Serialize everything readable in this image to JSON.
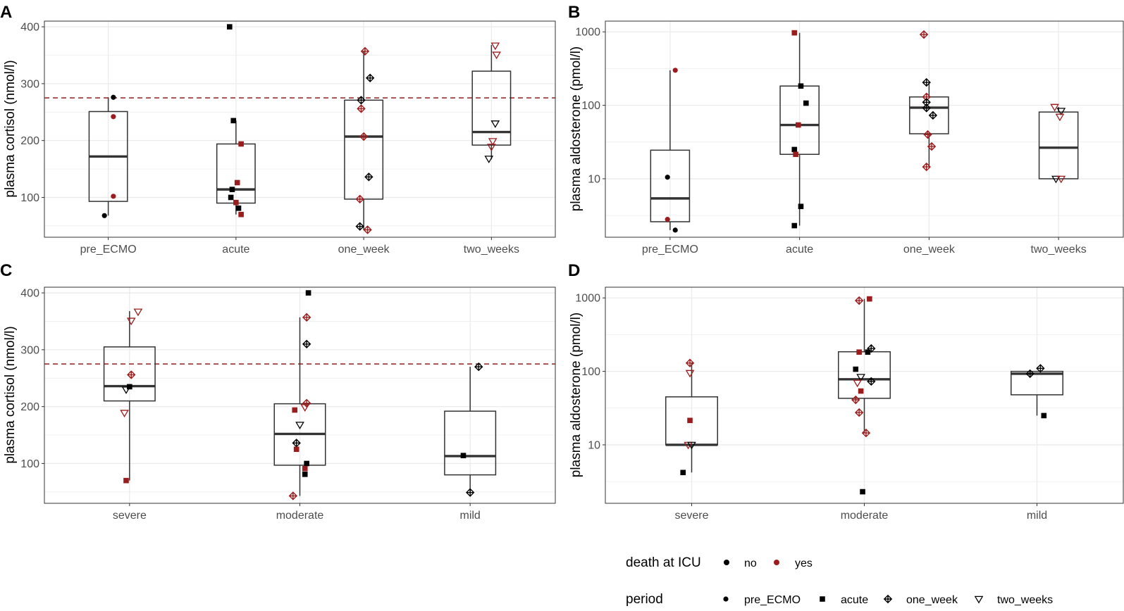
{
  "colors": {
    "no": "#000000",
    "yes": "#9b1c1c",
    "grid": "#ebebeb",
    "frame": "#333333",
    "refline": "#a52a2a"
  },
  "legend": {
    "death_title": "death at ICU",
    "death_items": [
      {
        "key": "no",
        "label": "no"
      },
      {
        "key": "yes",
        "label": "yes"
      }
    ],
    "period_title": "period",
    "period_items": [
      {
        "key": "pre_ECMO",
        "label": "pre_ECMO"
      },
      {
        "key": "acute",
        "label": "acute"
      },
      {
        "key": "one_week",
        "label": "one_week"
      },
      {
        "key": "two_weeks",
        "label": "two_weeks"
      }
    ]
  },
  "chart_data": [
    {
      "panel": "A",
      "type": "box",
      "scale": "linear",
      "ylabel": "plasma cortisol (nmol/l)",
      "ylim": [
        30,
        410
      ],
      "yticks": [
        100,
        200,
        300,
        400
      ],
      "reference_line": 275,
      "categories": [
        "pre_ECMO",
        "acute",
        "one_week",
        "two_weeks"
      ],
      "boxes": [
        {
          "q1": 93,
          "median": 172,
          "q3": 251,
          "whisker_low": 68,
          "whisker_high": 276
        },
        {
          "q1": 90,
          "median": 114,
          "q3": 194,
          "whisker_low": 70,
          "whisker_high": 235
        },
        {
          "q1": 97,
          "median": 207,
          "q3": 271,
          "whisker_low": 43,
          "whisker_high": 357
        },
        {
          "q1": 192,
          "median": 215,
          "q3": 322,
          "whisker_low": 167,
          "whisker_high": 368
        }
      ],
      "points": [
        {
          "cat": 0,
          "dx": -0.03,
          "y": 68,
          "death": "no",
          "period": "pre_ECMO"
        },
        {
          "cat": 0,
          "dx": 0.04,
          "y": 102,
          "death": "yes",
          "period": "pre_ECMO"
        },
        {
          "cat": 0,
          "dx": 0.04,
          "y": 242,
          "death": "yes",
          "period": "pre_ECMO"
        },
        {
          "cat": 0,
          "dx": 0.04,
          "y": 276,
          "death": "no",
          "period": "pre_ECMO"
        },
        {
          "cat": 1,
          "dx": -0.05,
          "y": 400,
          "death": "no",
          "period": "acute"
        },
        {
          "cat": 1,
          "dx": -0.02,
          "y": 235,
          "death": "no",
          "period": "acute"
        },
        {
          "cat": 1,
          "dx": 0.04,
          "y": 194,
          "death": "yes",
          "period": "acute"
        },
        {
          "cat": 1,
          "dx": 0.01,
          "y": 126,
          "death": "yes",
          "period": "acute"
        },
        {
          "cat": 1,
          "dx": -0.03,
          "y": 114,
          "death": "no",
          "period": "acute"
        },
        {
          "cat": 1,
          "dx": -0.04,
          "y": 100,
          "death": "no",
          "period": "acute"
        },
        {
          "cat": 1,
          "dx": 0.0,
          "y": 91,
          "death": "yes",
          "period": "acute"
        },
        {
          "cat": 1,
          "dx": 0.02,
          "y": 81,
          "death": "no",
          "period": "acute"
        },
        {
          "cat": 1,
          "dx": 0.04,
          "y": 70,
          "death": "yes",
          "period": "acute"
        },
        {
          "cat": 2,
          "dx": 0.01,
          "y": 357,
          "death": "yes",
          "period": "one_week"
        },
        {
          "cat": 2,
          "dx": 0.05,
          "y": 310,
          "death": "no",
          "period": "one_week"
        },
        {
          "cat": 2,
          "dx": -0.02,
          "y": 271,
          "death": "no",
          "period": "one_week"
        },
        {
          "cat": 2,
          "dx": -0.02,
          "y": 256,
          "death": "yes",
          "period": "one_week"
        },
        {
          "cat": 2,
          "dx": 0.0,
          "y": 207,
          "death": "yes",
          "period": "one_week"
        },
        {
          "cat": 2,
          "dx": 0.04,
          "y": 136,
          "death": "no",
          "period": "one_week"
        },
        {
          "cat": 2,
          "dx": -0.03,
          "y": 97,
          "death": "yes",
          "period": "one_week"
        },
        {
          "cat": 2,
          "dx": -0.03,
          "y": 49,
          "death": "no",
          "period": "one_week"
        },
        {
          "cat": 2,
          "dx": 0.03,
          "y": 43,
          "death": "yes",
          "period": "one_week"
        },
        {
          "cat": 3,
          "dx": 0.03,
          "y": 367,
          "death": "yes",
          "period": "two_weeks"
        },
        {
          "cat": 3,
          "dx": 0.04,
          "y": 351,
          "death": "yes",
          "period": "two_weeks"
        },
        {
          "cat": 3,
          "dx": 0.03,
          "y": 230,
          "death": "no",
          "period": "two_weeks"
        },
        {
          "cat": 3,
          "dx": 0.01,
          "y": 199,
          "death": "yes",
          "period": "two_weeks"
        },
        {
          "cat": 3,
          "dx": 0.0,
          "y": 189,
          "death": "yes",
          "period": "two_weeks"
        },
        {
          "cat": 3,
          "dx": -0.02,
          "y": 168,
          "death": "no",
          "period": "two_weeks"
        }
      ]
    },
    {
      "panel": "B",
      "type": "box",
      "scale": "log",
      "ylabel": "plasma aldosterone (pmol/l)",
      "ylim": [
        1.6,
        1400
      ],
      "yticks": [
        10,
        100,
        1000
      ],
      "categories": [
        "pre_ECMO",
        "acute",
        "one_week",
        "two_weeks"
      ],
      "boxes": [
        {
          "q1": 2.6,
          "median": 5.4,
          "q3": 24.5,
          "whisker_low": 2.0,
          "whisker_high": 300
        },
        {
          "q1": 21.5,
          "median": 54,
          "q3": 183,
          "whisker_low": 2.3,
          "whisker_high": 970
        },
        {
          "q1": 41,
          "median": 93,
          "q3": 130,
          "whisker_low": 14.5,
          "whisker_high": 205
        },
        {
          "q1": 10.0,
          "median": 26.5,
          "q3": 81,
          "whisker_low": 10.0,
          "whisker_high": 95
        }
      ],
      "points": [
        {
          "cat": 0,
          "dx": 0.04,
          "y": 300,
          "death": "yes",
          "period": "pre_ECMO"
        },
        {
          "cat": 0,
          "dx": -0.02,
          "y": 10.5,
          "death": "no",
          "period": "pre_ECMO"
        },
        {
          "cat": 0,
          "dx": -0.02,
          "y": 2.8,
          "death": "yes",
          "period": "pre_ECMO"
        },
        {
          "cat": 0,
          "dx": 0.04,
          "y": 2.0,
          "death": "no",
          "period": "pre_ECMO"
        },
        {
          "cat": 1,
          "dx": -0.04,
          "y": 970,
          "death": "yes",
          "period": "acute"
        },
        {
          "cat": 1,
          "dx": 0.01,
          "y": 183,
          "death": "no",
          "period": "acute"
        },
        {
          "cat": 1,
          "dx": 0.05,
          "y": 107,
          "death": "no",
          "period": "acute"
        },
        {
          "cat": 1,
          "dx": -0.01,
          "y": 54,
          "death": "yes",
          "period": "acute"
        },
        {
          "cat": 1,
          "dx": -0.04,
          "y": 25,
          "death": "no",
          "period": "acute"
        },
        {
          "cat": 1,
          "dx": -0.03,
          "y": 21.5,
          "death": "yes",
          "period": "acute"
        },
        {
          "cat": 1,
          "dx": 0.01,
          "y": 4.2,
          "death": "no",
          "period": "acute"
        },
        {
          "cat": 1,
          "dx": -0.04,
          "y": 2.3,
          "death": "no",
          "period": "acute"
        },
        {
          "cat": 2,
          "dx": -0.04,
          "y": 920,
          "death": "yes",
          "period": "one_week"
        },
        {
          "cat": 2,
          "dx": -0.02,
          "y": 205,
          "death": "no",
          "period": "one_week"
        },
        {
          "cat": 2,
          "dx": -0.02,
          "y": 130,
          "death": "yes",
          "period": "one_week"
        },
        {
          "cat": 2,
          "dx": -0.02,
          "y": 110,
          "death": "no",
          "period": "one_week"
        },
        {
          "cat": 2,
          "dx": -0.02,
          "y": 92,
          "death": "no",
          "period": "one_week"
        },
        {
          "cat": 2,
          "dx": 0.03,
          "y": 73,
          "death": "no",
          "period": "one_week"
        },
        {
          "cat": 2,
          "dx": -0.01,
          "y": 40,
          "death": "yes",
          "period": "one_week"
        },
        {
          "cat": 2,
          "dx": 0.02,
          "y": 27.5,
          "death": "yes",
          "period": "one_week"
        },
        {
          "cat": 2,
          "dx": -0.02,
          "y": 14.5,
          "death": "yes",
          "period": "one_week"
        },
        {
          "cat": 3,
          "dx": -0.03,
          "y": 95,
          "death": "yes",
          "period": "two_weeks"
        },
        {
          "cat": 3,
          "dx": 0.02,
          "y": 84,
          "death": "no",
          "period": "two_weeks"
        },
        {
          "cat": 3,
          "dx": 0.01,
          "y": 70,
          "death": "yes",
          "period": "two_weeks"
        },
        {
          "cat": 3,
          "dx": -0.02,
          "y": 10.0,
          "death": "no",
          "period": "two_weeks"
        },
        {
          "cat": 3,
          "dx": 0.02,
          "y": 10.0,
          "death": "yes",
          "period": "two_weeks"
        }
      ]
    },
    {
      "panel": "C",
      "type": "box",
      "scale": "linear",
      "ylabel": "plasma cortisol (nmol/l)",
      "ylim": [
        30,
        410
      ],
      "yticks": [
        100,
        200,
        300,
        400
      ],
      "reference_line": 275,
      "categories": [
        "severe",
        "moderate",
        "mild"
      ],
      "boxes": [
        {
          "q1": 210,
          "median": 236,
          "q3": 305,
          "whisker_low": 70,
          "whisker_high": 368
        },
        {
          "q1": 97,
          "median": 152,
          "q3": 205,
          "whisker_low": 43,
          "whisker_high": 357
        },
        {
          "q1": 80,
          "median": 113,
          "q3": 192,
          "whisker_low": 49,
          "whisker_high": 270
        }
      ],
      "points": [
        {
          "cat": 0,
          "dx": 0.05,
          "y": 367,
          "death": "yes",
          "period": "two_weeks"
        },
        {
          "cat": 0,
          "dx": 0.01,
          "y": 351,
          "death": "yes",
          "period": "two_weeks"
        },
        {
          "cat": 0,
          "dx": 0.01,
          "y": 256,
          "death": "yes",
          "period": "one_week"
        },
        {
          "cat": 0,
          "dx": 0.0,
          "y": 235,
          "death": "no",
          "period": "acute"
        },
        {
          "cat": 0,
          "dx": -0.02,
          "y": 230,
          "death": "no",
          "period": "two_weeks"
        },
        {
          "cat": 0,
          "dx": -0.03,
          "y": 189,
          "death": "yes",
          "period": "two_weeks"
        },
        {
          "cat": 0,
          "dx": -0.02,
          "y": 70,
          "death": "yes",
          "period": "acute"
        },
        {
          "cat": 1,
          "dx": 0.05,
          "y": 400,
          "death": "no",
          "period": "acute"
        },
        {
          "cat": 1,
          "dx": 0.04,
          "y": 357,
          "death": "yes",
          "period": "one_week"
        },
        {
          "cat": 1,
          "dx": 0.04,
          "y": 310,
          "death": "no",
          "period": "one_week"
        },
        {
          "cat": 1,
          "dx": 0.04,
          "y": 206,
          "death": "yes",
          "period": "one_week"
        },
        {
          "cat": 1,
          "dx": 0.03,
          "y": 199,
          "death": "yes",
          "period": "two_weeks"
        },
        {
          "cat": 1,
          "dx": -0.03,
          "y": 194,
          "death": "yes",
          "period": "acute"
        },
        {
          "cat": 1,
          "dx": 0.0,
          "y": 168,
          "death": "no",
          "period": "two_weeks"
        },
        {
          "cat": 1,
          "dx": -0.02,
          "y": 136,
          "death": "no",
          "period": "one_week"
        },
        {
          "cat": 1,
          "dx": -0.02,
          "y": 125,
          "death": "yes",
          "period": "acute"
        },
        {
          "cat": 1,
          "dx": 0.04,
          "y": 100,
          "death": "no",
          "period": "acute"
        },
        {
          "cat": 1,
          "dx": 0.03,
          "y": 91,
          "death": "yes",
          "period": "acute"
        },
        {
          "cat": 1,
          "dx": 0.03,
          "y": 81,
          "death": "no",
          "period": "acute"
        },
        {
          "cat": 1,
          "dx": -0.04,
          "y": 43,
          "death": "yes",
          "period": "one_week"
        },
        {
          "cat": 2,
          "dx": 0.05,
          "y": 270,
          "death": "no",
          "period": "one_week"
        },
        {
          "cat": 2,
          "dx": -0.04,
          "y": 114,
          "death": "no",
          "period": "acute"
        },
        {
          "cat": 2,
          "dx": 0.0,
          "y": 49,
          "death": "no",
          "period": "one_week"
        }
      ]
    },
    {
      "panel": "D",
      "type": "box",
      "scale": "log",
      "ylabel": "plasma aldosterone (pmol/l)",
      "ylim": [
        1.6,
        1400
      ],
      "yticks": [
        10,
        100,
        1000
      ],
      "categories": [
        "severe",
        "moderate",
        "mild"
      ],
      "boxes": [
        {
          "q1": 10.0,
          "median": 10.0,
          "q3": 45,
          "whisker_low": 4.2,
          "whisker_high": 130
        },
        {
          "q1": 43,
          "median": 78,
          "q3": 185,
          "whisker_low": 14.5,
          "whisker_high": 970
        },
        {
          "q1": 48,
          "median": 93,
          "q3": 100,
          "whisker_low": 25,
          "whisker_high": 100
        }
      ],
      "points": [
        {
          "cat": 0,
          "dx": -0.01,
          "y": 130,
          "death": "yes",
          "period": "one_week"
        },
        {
          "cat": 0,
          "dx": -0.01,
          "y": 95,
          "death": "yes",
          "period": "two_weeks"
        },
        {
          "cat": 0,
          "dx": -0.01,
          "y": 21.5,
          "death": "yes",
          "period": "acute"
        },
        {
          "cat": 0,
          "dx": -0.02,
          "y": 10.0,
          "death": "yes",
          "period": "two_weeks"
        },
        {
          "cat": 0,
          "dx": 0.0,
          "y": 10.0,
          "death": "no",
          "period": "two_weeks"
        },
        {
          "cat": 0,
          "dx": -0.05,
          "y": 4.2,
          "death": "no",
          "period": "acute"
        },
        {
          "cat": 1,
          "dx": 0.03,
          "y": 970,
          "death": "yes",
          "period": "acute"
        },
        {
          "cat": 1,
          "dx": -0.03,
          "y": 920,
          "death": "yes",
          "period": "one_week"
        },
        {
          "cat": 1,
          "dx": 0.04,
          "y": 205,
          "death": "no",
          "period": "one_week"
        },
        {
          "cat": 1,
          "dx": 0.02,
          "y": 183,
          "death": "no",
          "period": "acute"
        },
        {
          "cat": 1,
          "dx": -0.03,
          "y": 183,
          "death": "yes",
          "period": "acute"
        },
        {
          "cat": 1,
          "dx": -0.05,
          "y": 107,
          "death": "no",
          "period": "acute"
        },
        {
          "cat": 1,
          "dx": -0.02,
          "y": 84,
          "death": "no",
          "period": "two_weeks"
        },
        {
          "cat": 1,
          "dx": 0.04,
          "y": 73,
          "death": "no",
          "period": "one_week"
        },
        {
          "cat": 1,
          "dx": -0.04,
          "y": 70,
          "death": "yes",
          "period": "two_weeks"
        },
        {
          "cat": 1,
          "dx": -0.02,
          "y": 54,
          "death": "yes",
          "period": "acute"
        },
        {
          "cat": 1,
          "dx": -0.05,
          "y": 41,
          "death": "yes",
          "period": "one_week"
        },
        {
          "cat": 1,
          "dx": -0.03,
          "y": 27.5,
          "death": "yes",
          "period": "one_week"
        },
        {
          "cat": 1,
          "dx": 0.01,
          "y": 14.5,
          "death": "yes",
          "period": "one_week"
        },
        {
          "cat": 1,
          "dx": -0.01,
          "y": 2.3,
          "death": "no",
          "period": "acute"
        },
        {
          "cat": 2,
          "dx": 0.02,
          "y": 110,
          "death": "no",
          "period": "one_week"
        },
        {
          "cat": 2,
          "dx": -0.04,
          "y": 93,
          "death": "no",
          "period": "one_week"
        },
        {
          "cat": 2,
          "dx": 0.04,
          "y": 25,
          "death": "no",
          "period": "acute"
        }
      ]
    }
  ]
}
